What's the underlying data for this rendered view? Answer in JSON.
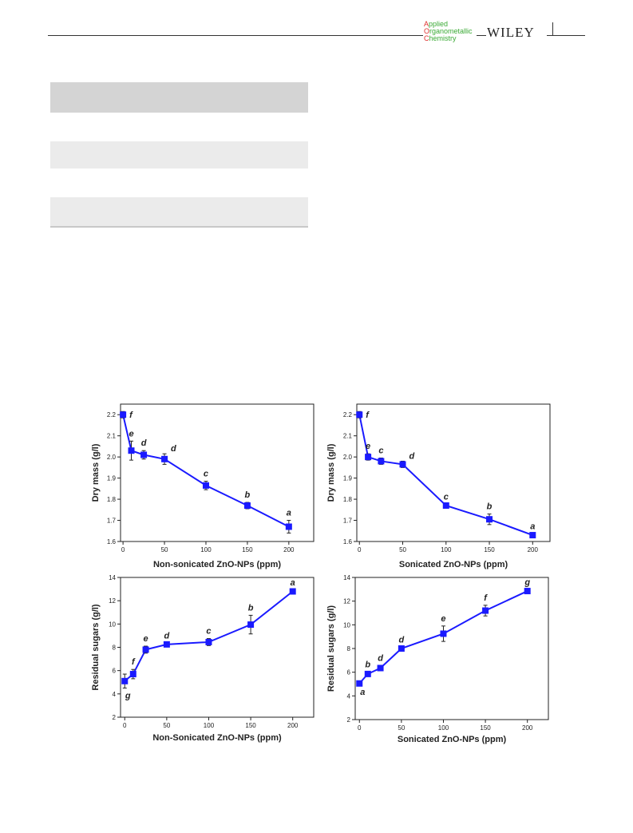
{
  "header": {
    "journal_line1_cap": "A",
    "journal_line1_rest": "pplied",
    "journal_line2_cap": "O",
    "journal_line2_rest": "rganometallic",
    "journal_line3_cap": "C",
    "journal_line3_rest": "hemistry",
    "publisher": "WILEY"
  },
  "colors": {
    "series": "#1a1aff",
    "axis": "#222222",
    "band_dark": "#d4d4d4",
    "band_light": "#ebebeb"
  },
  "chart_data": [
    {
      "type": "line",
      "xlabel": "Non-sonicated ZnO-NPs (ppm)",
      "ylabel": "Dry mass (g/l)",
      "xlim": [
        -3,
        230
      ],
      "ylim": [
        1.6,
        2.25
      ],
      "xticks": [
        0,
        50,
        100,
        150,
        200
      ],
      "yticks": [
        1.6,
        1.7,
        1.8,
        1.9,
        2.0,
        2.1,
        2.2
      ],
      "x": [
        0,
        10,
        25,
        50,
        100,
        150,
        200
      ],
      "y": [
        2.2,
        2.03,
        2.01,
        1.99,
        1.865,
        1.77,
        1.67
      ],
      "err": [
        0.015,
        0.045,
        0.02,
        0.025,
        0.02,
        0.015,
        0.03
      ],
      "letters": [
        "f",
        "e",
        "d",
        "d",
        "c",
        "b",
        "a"
      ],
      "letter_pos": [
        "right",
        "above",
        "above",
        "above-right",
        "above",
        "above",
        "above"
      ]
    },
    {
      "type": "line",
      "xlabel": "Sonicated ZnO-NPs (ppm)",
      "ylabel": "Dry mass (g/l)",
      "xlim": [
        -3,
        220
      ],
      "ylim": [
        1.6,
        2.25
      ],
      "xticks": [
        0,
        50,
        100,
        150,
        200
      ],
      "yticks": [
        1.6,
        1.7,
        1.8,
        1.9,
        2.0,
        2.1,
        2.2
      ],
      "x": [
        0,
        10,
        25,
        50,
        100,
        150,
        200
      ],
      "y": [
        2.2,
        2.0,
        1.98,
        1.965,
        1.77,
        1.705,
        1.63
      ],
      "err": [
        0.015,
        0.015,
        0.015,
        0.015,
        0.005,
        0.025,
        0.005
      ],
      "letters": [
        "f",
        "e",
        "c",
        "d",
        "c",
        "b",
        "a"
      ],
      "letter_pos": [
        "right",
        "above",
        "above",
        "above-right",
        "above",
        "above",
        "above"
      ]
    },
    {
      "type": "line",
      "xlabel": "Non-Sonicated ZnO-NPs (ppm)",
      "ylabel": "Residual sugars (g/l)",
      "xlim": [
        -5,
        225
      ],
      "ylim": [
        2,
        14
      ],
      "xticks": [
        0,
        50,
        100,
        150,
        200
      ],
      "yticks": [
        2,
        4,
        6,
        8,
        10,
        12,
        14
      ],
      "x": [
        0,
        10,
        25,
        50,
        100,
        150,
        200
      ],
      "y": [
        5.1,
        5.7,
        7.8,
        8.25,
        8.45,
        9.95,
        12.8
      ],
      "err": [
        0.6,
        0.4,
        0.3,
        0.1,
        0.3,
        0.8,
        0.1
      ],
      "letters": [
        "g",
        "f",
        "e",
        "d",
        "c",
        "b",
        "a"
      ],
      "letter_pos": [
        "below",
        "above",
        "above",
        "above",
        "above",
        "above",
        "above"
      ]
    },
    {
      "type": "line",
      "xlabel": "Sonicated ZnO-NPs (ppm)",
      "ylabel": "Residual sugars (g/l)",
      "xlim": [
        -5,
        225
      ],
      "ylim": [
        2,
        14
      ],
      "xticks": [
        0,
        50,
        100,
        150,
        200
      ],
      "yticks": [
        2,
        4,
        6,
        8,
        10,
        12,
        14
      ],
      "x": [
        0,
        10,
        25,
        50,
        100,
        150,
        200
      ],
      "y": [
        5.05,
        5.85,
        6.35,
        8.0,
        9.25,
        11.2,
        12.85
      ],
      "err": [
        0.1,
        0.15,
        0.2,
        0.1,
        0.65,
        0.45,
        0.1
      ],
      "letters": [
        "a",
        "b",
        "d",
        "d",
        "e",
        "f",
        "g"
      ],
      "letter_pos": [
        "below",
        "above",
        "above",
        "above",
        "above",
        "above",
        "above"
      ]
    }
  ]
}
